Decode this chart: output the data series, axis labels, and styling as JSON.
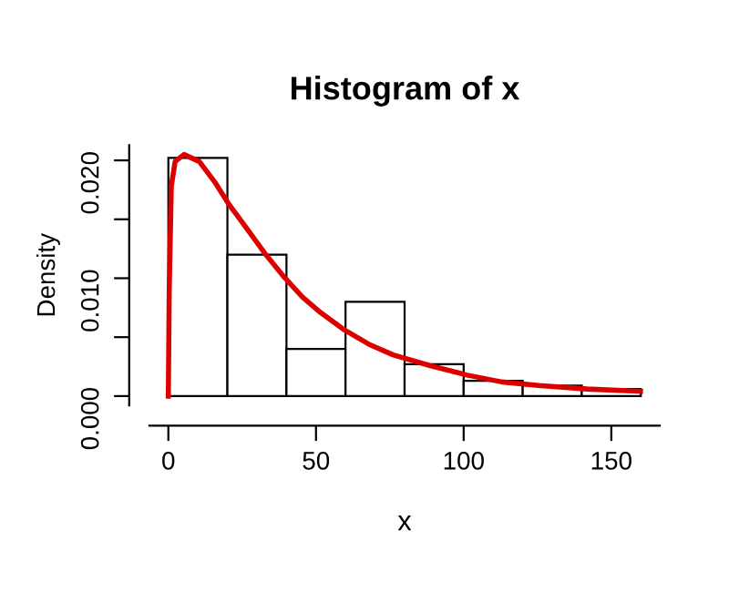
{
  "chart_data": {
    "type": "histogram",
    "title": "Histogram of x",
    "xlabel": "x",
    "ylabel": "Density",
    "bins": [
      0,
      20,
      40,
      60,
      80,
      100,
      120,
      140,
      160
    ],
    "values": [
      0.0202,
      0.012,
      0.004,
      0.008,
      0.0027,
      0.0013,
      0.0009,
      0.0006
    ],
    "color": "#ffffff",
    "series": [
      {
        "type": "line",
        "color": "#dd0000",
        "x": [
          0,
          0.3,
          1,
          2.3,
          5.3,
          10.5,
          15.6,
          20.7,
          26.9,
          33,
          39.2,
          45.4,
          51.5,
          59.7,
          67.9,
          76.1,
          88.4,
          100.8,
          113,
          125.4,
          141.8,
          159.9
        ],
        "values": [
          0,
          0.009,
          0.0178,
          0.0199,
          0.0205,
          0.0199,
          0.0182,
          0.0162,
          0.0141,
          0.012,
          0.0101,
          0.0084,
          0.0071,
          0.0056,
          0.0044,
          0.0035,
          0.0026,
          0.0018,
          0.0012,
          0.0009,
          0.0006,
          0.0004
        ]
      }
    ],
    "xlim": [
      -6.4,
      166.4
    ],
    "ylim": [
      -0.0008,
      0.0213
    ],
    "xticks": [
      0,
      50,
      100,
      150
    ],
    "yticks": [
      {
        "value": 0,
        "label": "0.000"
      },
      {
        "value": 0.005,
        "label": null
      },
      {
        "value": 0.01,
        "label": "0.010"
      },
      {
        "value": 0.015,
        "label": null
      },
      {
        "value": 0.02,
        "label": "0.020"
      }
    ],
    "grid": false,
    "legend": false
  }
}
